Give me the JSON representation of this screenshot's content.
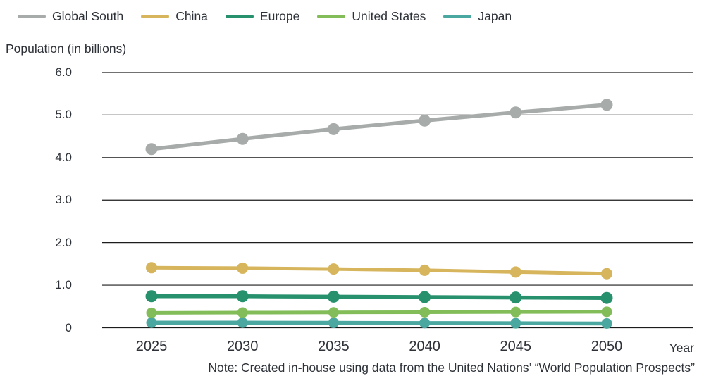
{
  "chart_data": {
    "type": "line",
    "title": "",
    "ylabel": "Population (in billions)",
    "xlabel": "Year",
    "categories": [
      "2025",
      "2030",
      "2035",
      "2040",
      "2045",
      "2050"
    ],
    "yticks": [
      "6.0",
      "5.0",
      "4.0",
      "3.0",
      "2.0",
      "1.0",
      "0"
    ],
    "ylim": [
      0,
      6
    ],
    "grid": "horizontal",
    "legend_position": "top",
    "series": [
      {
        "name": "Global South",
        "color": "#a7abaa",
        "values": [
          4.2,
          4.44,
          4.67,
          4.87,
          5.06,
          5.24
        ]
      },
      {
        "name": "China",
        "color": "#d6b55c",
        "values": [
          1.41,
          1.4,
          1.38,
          1.35,
          1.31,
          1.27
        ]
      },
      {
        "name": "Europe",
        "color": "#27906c",
        "values": [
          0.74,
          0.74,
          0.73,
          0.72,
          0.71,
          0.7
        ]
      },
      {
        "name": "United States",
        "color": "#82bd59",
        "values": [
          0.35,
          0.355,
          0.36,
          0.365,
          0.37,
          0.375
        ]
      },
      {
        "name": "Japan",
        "color": "#4ba8a0",
        "values": [
          0.12,
          0.12,
          0.115,
          0.11,
          0.105,
          0.1
        ]
      }
    ],
    "note": "Note: Created in-house using data from the United Nations’ “World Population Prospects”",
    "colors": {
      "grid": "#1c1c1c",
      "text": "#2d3138",
      "background": "#ffffff"
    }
  }
}
